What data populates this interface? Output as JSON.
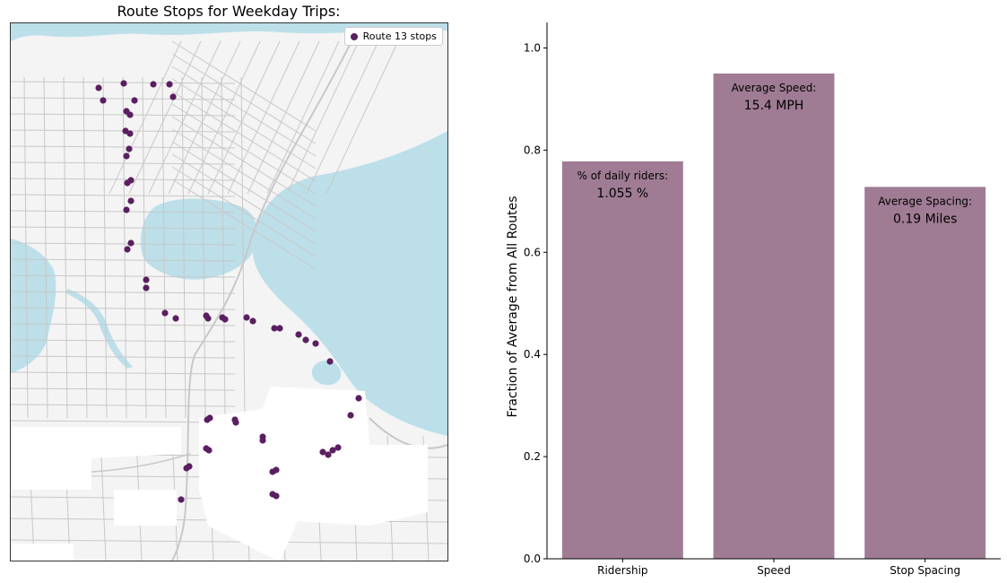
{
  "map": {
    "title": "Route Stops for Weekday Trips:",
    "legend_label": "Route 13 stops",
    "stop_color": "#5a1f60",
    "water_color": "#bcdfea",
    "land_color": "#f4f4f4",
    "road_color": "#c8c8c8"
  },
  "chart_data": {
    "type": "bar",
    "categories": [
      "Ridership",
      "Speed",
      "Stop Spacing"
    ],
    "values": [
      0.778,
      0.95,
      0.728
    ],
    "annotations": [
      {
        "label": "% of daily riders:",
        "value": "1.055 %"
      },
      {
        "label": "Average Speed:",
        "value": "15.4 MPH"
      },
      {
        "label": "Average Spacing:",
        "value": "0.19 Miles"
      }
    ],
    "ylabel": "Fraction of Average from All Routes",
    "xlabel": "",
    "ylim": [
      0,
      1.05
    ],
    "yticks": [
      0.0,
      0.2,
      0.4,
      0.6,
      0.8,
      1.0
    ],
    "bar_color": "#a07c94",
    "grid": false
  }
}
